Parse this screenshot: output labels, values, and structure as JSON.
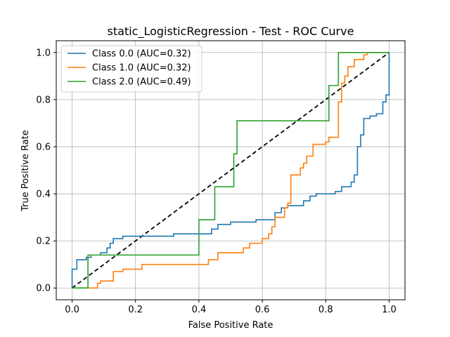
{
  "chart_data": {
    "type": "line",
    "title": "static_LogisticRegression - Test - ROC Curve",
    "xlabel": "False Positive Rate",
    "ylabel": "True Positive Rate",
    "xlim": [
      -0.05,
      1.05
    ],
    "ylim": [
      -0.05,
      1.05
    ],
    "xticks": [
      "0.0",
      "0.2",
      "0.4",
      "0.6",
      "0.8",
      "1.0"
    ],
    "yticks": [
      "0.0",
      "0.2",
      "0.4",
      "0.6",
      "0.8",
      "1.0"
    ],
    "grid": true,
    "legend_position": "upper-left",
    "series": [
      {
        "name": "Class 0.0 (AUC=0.32)",
        "color": "#1f77b4",
        "points": [
          [
            0,
            0
          ],
          [
            0,
            0.08
          ],
          [
            0.015,
            0.08
          ],
          [
            0.015,
            0.12
          ],
          [
            0.045,
            0.12
          ],
          [
            0.045,
            0.13
          ],
          [
            0.06,
            0.13
          ],
          [
            0.06,
            0.14
          ],
          [
            0.09,
            0.14
          ],
          [
            0.09,
            0.15
          ],
          [
            0.11,
            0.15
          ],
          [
            0.11,
            0.17
          ],
          [
            0.12,
            0.17
          ],
          [
            0.12,
            0.19
          ],
          [
            0.13,
            0.19
          ],
          [
            0.13,
            0.21
          ],
          [
            0.16,
            0.21
          ],
          [
            0.16,
            0.22
          ],
          [
            0.25,
            0.22
          ],
          [
            0.25,
            0.22
          ],
          [
            0.32,
            0.22
          ],
          [
            0.32,
            0.23
          ],
          [
            0.44,
            0.23
          ],
          [
            0.44,
            0.25
          ],
          [
            0.46,
            0.25
          ],
          [
            0.46,
            0.27
          ],
          [
            0.5,
            0.27
          ],
          [
            0.5,
            0.28
          ],
          [
            0.58,
            0.28
          ],
          [
            0.58,
            0.29
          ],
          [
            0.64,
            0.29
          ],
          [
            0.64,
            0.32
          ],
          [
            0.66,
            0.32
          ],
          [
            0.66,
            0.34
          ],
          [
            0.68,
            0.34
          ],
          [
            0.68,
            0.35
          ],
          [
            0.73,
            0.35
          ],
          [
            0.73,
            0.37
          ],
          [
            0.75,
            0.37
          ],
          [
            0.75,
            0.39
          ],
          [
            0.77,
            0.39
          ],
          [
            0.77,
            0.4
          ],
          [
            0.83,
            0.4
          ],
          [
            0.83,
            0.41
          ],
          [
            0.85,
            0.41
          ],
          [
            0.85,
            0.43
          ],
          [
            0.88,
            0.43
          ],
          [
            0.88,
            0.45
          ],
          [
            0.89,
            0.45
          ],
          [
            0.89,
            0.48
          ],
          [
            0.9,
            0.48
          ],
          [
            0.9,
            0.6
          ],
          [
            0.91,
            0.6
          ],
          [
            0.91,
            0.65
          ],
          [
            0.92,
            0.65
          ],
          [
            0.92,
            0.72
          ],
          [
            0.94,
            0.72
          ],
          [
            0.94,
            0.73
          ],
          [
            0.96,
            0.73
          ],
          [
            0.96,
            0.74
          ],
          [
            0.98,
            0.74
          ],
          [
            0.98,
            0.79
          ],
          [
            0.99,
            0.79
          ],
          [
            0.99,
            0.82
          ],
          [
            1,
            0.82
          ],
          [
            1,
            1
          ]
        ]
      },
      {
        "name": "Class 1.0 (AUC=0.32)",
        "color": "#ff7f0e",
        "points": [
          [
            0,
            0
          ],
          [
            0.08,
            0
          ],
          [
            0.08,
            0.02
          ],
          [
            0.09,
            0.02
          ],
          [
            0.09,
            0.03
          ],
          [
            0.13,
            0.03
          ],
          [
            0.13,
            0.07
          ],
          [
            0.16,
            0.07
          ],
          [
            0.16,
            0.08
          ],
          [
            0.22,
            0.08
          ],
          [
            0.22,
            0.1
          ],
          [
            0.43,
            0.1
          ],
          [
            0.43,
            0.12
          ],
          [
            0.46,
            0.12
          ],
          [
            0.46,
            0.15
          ],
          [
            0.54,
            0.15
          ],
          [
            0.54,
            0.17
          ],
          [
            0.56,
            0.17
          ],
          [
            0.56,
            0.19
          ],
          [
            0.6,
            0.19
          ],
          [
            0.6,
            0.21
          ],
          [
            0.62,
            0.21
          ],
          [
            0.62,
            0.23
          ],
          [
            0.63,
            0.23
          ],
          [
            0.63,
            0.26
          ],
          [
            0.64,
            0.26
          ],
          [
            0.64,
            0.3
          ],
          [
            0.67,
            0.3
          ],
          [
            0.67,
            0.34
          ],
          [
            0.68,
            0.34
          ],
          [
            0.68,
            0.36
          ],
          [
            0.69,
            0.36
          ],
          [
            0.69,
            0.48
          ],
          [
            0.72,
            0.48
          ],
          [
            0.72,
            0.51
          ],
          [
            0.73,
            0.51
          ],
          [
            0.73,
            0.53
          ],
          [
            0.74,
            0.53
          ],
          [
            0.74,
            0.56
          ],
          [
            0.76,
            0.56
          ],
          [
            0.76,
            0.61
          ],
          [
            0.8,
            0.61
          ],
          [
            0.8,
            0.62
          ],
          [
            0.81,
            0.62
          ],
          [
            0.81,
            0.64
          ],
          [
            0.84,
            0.64
          ],
          [
            0.84,
            0.79
          ],
          [
            0.85,
            0.79
          ],
          [
            0.85,
            0.87
          ],
          [
            0.86,
            0.87
          ],
          [
            0.86,
            0.9
          ],
          [
            0.87,
            0.9
          ],
          [
            0.87,
            0.94
          ],
          [
            0.89,
            0.94
          ],
          [
            0.89,
            0.97
          ],
          [
            0.92,
            0.97
          ],
          [
            0.92,
            0.99
          ],
          [
            0.93,
            0.99
          ],
          [
            0.93,
            1
          ],
          [
            1,
            1
          ]
        ]
      },
      {
        "name": "Class 2.0 (AUC=0.49)",
        "color": "#2ca02c",
        "points": [
          [
            0,
            0
          ],
          [
            0.05,
            0
          ],
          [
            0.05,
            0.14
          ],
          [
            0.4,
            0.14
          ],
          [
            0.4,
            0.29
          ],
          [
            0.45,
            0.29
          ],
          [
            0.45,
            0.43
          ],
          [
            0.51,
            0.43
          ],
          [
            0.51,
            0.57
          ],
          [
            0.52,
            0.57
          ],
          [
            0.52,
            0.71
          ],
          [
            0.81,
            0.71
          ],
          [
            0.81,
            0.86
          ],
          [
            0.84,
            0.86
          ],
          [
            0.84,
            1
          ],
          [
            1,
            1
          ]
        ]
      },
      {
        "name": "",
        "color": "#000000",
        "dashed": true,
        "points": [
          [
            0,
            0
          ],
          [
            1,
            1
          ]
        ]
      }
    ]
  }
}
